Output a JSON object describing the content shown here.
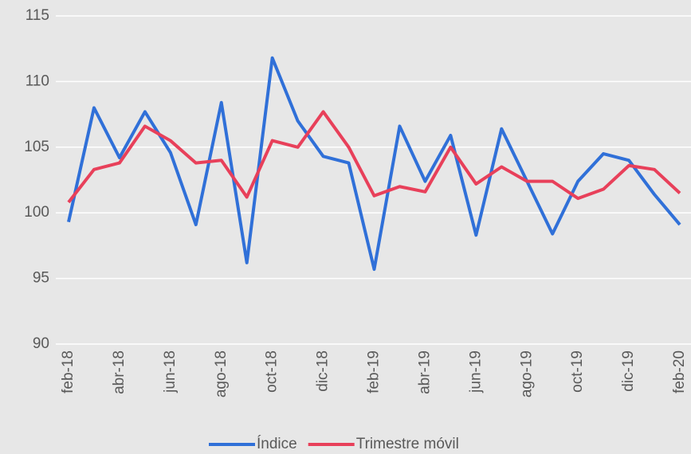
{
  "chart_data": {
    "type": "line",
    "categories": [
      "feb-18",
      null,
      "abr-18",
      null,
      "jun-18",
      null,
      "ago-18",
      null,
      "oct-18",
      null,
      "dic-18",
      null,
      "feb-19",
      null,
      "abr-19",
      null,
      "jun-19",
      null,
      "ago-19",
      null,
      "oct-19",
      null,
      "dic-19",
      null,
      "feb-20"
    ],
    "series": [
      {
        "name": "Índice",
        "color": "#3070d8",
        "values": [
          99.3,
          108.0,
          104.2,
          107.7,
          104.6,
          99.1,
          108.4,
          96.2,
          111.8,
          107.0,
          104.3,
          103.8,
          95.7,
          106.6,
          102.4,
          105.9,
          98.3,
          106.4,
          102.4,
          98.4,
          102.4,
          104.5,
          104.0,
          101.4,
          99.1
        ]
      },
      {
        "name": "Trimestre móvil",
        "color": "#e8405a",
        "values": [
          100.8,
          103.3,
          103.8,
          106.6,
          105.5,
          103.8,
          104.0,
          101.2,
          105.5,
          105.0,
          107.7,
          105.0,
          101.3,
          102.0,
          101.6,
          105.0,
          102.2,
          103.5,
          102.4,
          102.4,
          101.1,
          101.8,
          103.6,
          103.3,
          101.5
        ]
      }
    ],
    "ylim": [
      90,
      115
    ],
    "yticks": [
      90,
      95,
      100,
      105,
      110,
      115
    ],
    "grid": true,
    "legend": "bottom"
  }
}
